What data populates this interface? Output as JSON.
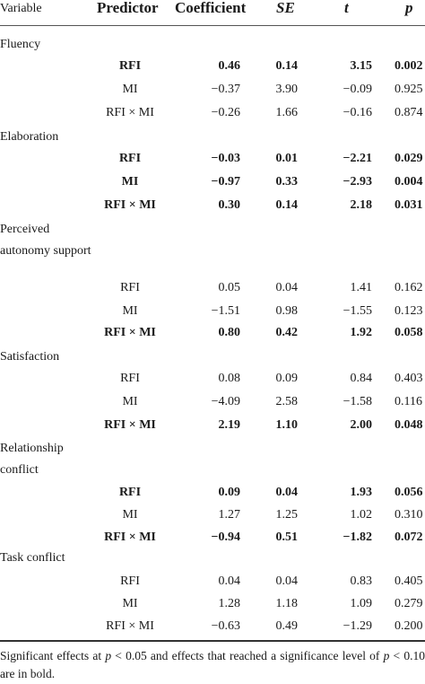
{
  "headers": {
    "variable": "Variable",
    "predictor": "Predictor",
    "coefficient": "Coefficient",
    "se": "SE",
    "t": "t",
    "p": "p"
  },
  "groups": [
    {
      "label": "Fluency",
      "rows": [
        {
          "predictor": "RFI",
          "coef": "0.46",
          "se": "0.14",
          "t": "3.15",
          "p": "0.002",
          "bold": true
        },
        {
          "predictor": "MI",
          "coef": "−0.37",
          "se": "3.90",
          "t": "−0.09",
          "p": "0.925",
          "bold": false
        },
        {
          "predictor": "RFI × MI",
          "coef": "−0.26",
          "se": "1.66",
          "t": "−0.16",
          "p": "0.874",
          "bold": false
        }
      ]
    },
    {
      "label": "Elaboration",
      "rows": [
        {
          "predictor": "RFI",
          "coef": "−0.03",
          "se": "0.01",
          "t": "−2.21",
          "p": "0.029",
          "bold": true
        },
        {
          "predictor": "MI",
          "coef": "−0.97",
          "se": "0.33",
          "t": "−2.93",
          "p": "0.004",
          "bold": true
        },
        {
          "predictor": "RFI × MI",
          "coef": "0.30",
          "se": "0.14",
          "t": "2.18",
          "p": "0.031",
          "bold": true
        }
      ]
    },
    {
      "label": "Perceived autonomy support",
      "rows": [
        {
          "predictor": "RFI",
          "coef": "0.05",
          "se": "0.04",
          "t": "1.41",
          "p": "0.162",
          "bold": false
        },
        {
          "predictor": "MI",
          "coef": "−1.51",
          "se": "0.98",
          "t": "−1.55",
          "p": "0.123",
          "bold": false
        },
        {
          "predictor": "RFI × MI",
          "coef": "0.80",
          "se": "0.42",
          "t": "1.92",
          "p": "0.058",
          "bold": true
        }
      ]
    },
    {
      "label": "Satisfaction",
      "rows": [
        {
          "predictor": "RFI",
          "coef": "0.08",
          "se": "0.09",
          "t": "0.84",
          "p": "0.403",
          "bold": false
        },
        {
          "predictor": "MI",
          "coef": "−4.09",
          "se": "2.58",
          "t": "−1.58",
          "p": "0.116",
          "bold": false
        },
        {
          "predictor": "RFI × MI",
          "coef": "2.19",
          "se": "1.10",
          "t": "2.00",
          "p": "0.048",
          "bold": true
        }
      ]
    },
    {
      "label": "Relationship conflict",
      "rows": [
        {
          "predictor": "RFI",
          "coef": "0.09",
          "se": "0.04",
          "t": "1.93",
          "p": "0.056",
          "bold": true
        },
        {
          "predictor": "MI",
          "coef": "1.27",
          "se": "1.25",
          "t": "1.02",
          "p": "0.310",
          "bold": false
        },
        {
          "predictor": "RFI × MI",
          "coef": "−0.94",
          "se": "0.51",
          "t": "−1.82",
          "p": "0.072",
          "bold": true
        }
      ]
    },
    {
      "label": "Task conflict",
      "rows": [
        {
          "predictor": "RFI",
          "coef": "0.04",
          "se": "0.04",
          "t": "0.83",
          "p": "0.405",
          "bold": false
        },
        {
          "predictor": "MI",
          "coef": "1.28",
          "se": "1.18",
          "t": "1.09",
          "p": "0.279",
          "bold": false
        },
        {
          "predictor": "RFI × MI",
          "coef": "−0.63",
          "se": "0.49",
          "t": "−1.29",
          "p": "0.200",
          "bold": false
        }
      ]
    }
  ],
  "footnote": {
    "part1": "Significant effects at ",
    "p1": "p",
    "part2": " < 0.05 and effects that reached a significance level of ",
    "p2": "p",
    "part3": " < 0.10 are in bold."
  }
}
